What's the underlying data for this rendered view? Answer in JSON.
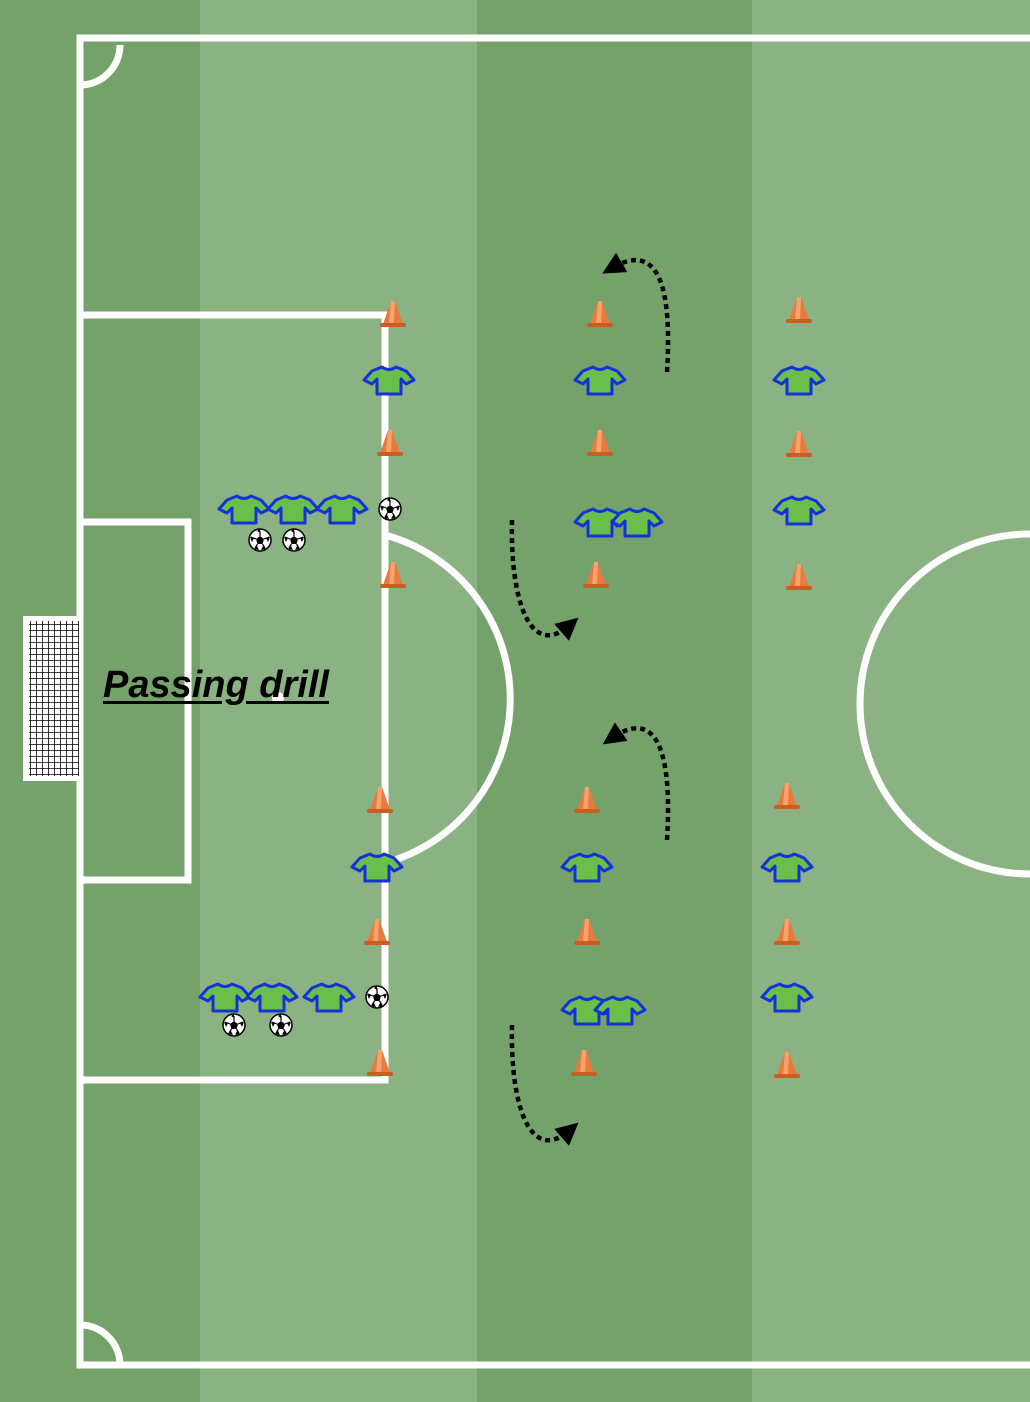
{
  "title": "Passing drill",
  "colors": {
    "grass_dark": "#75a26b",
    "grass_light": "#8ab282",
    "lines": "#ffffff",
    "cone": "#e87a3e",
    "shirt_fill": "#6abf4b",
    "shirt_outline": "#1432d8",
    "arrow": "#000000"
  },
  "icons": [
    "cone-icon",
    "player-shirt-icon",
    "soccer-ball-icon",
    "goal-net-icon",
    "curved-dotted-arrow-icon"
  ]
}
